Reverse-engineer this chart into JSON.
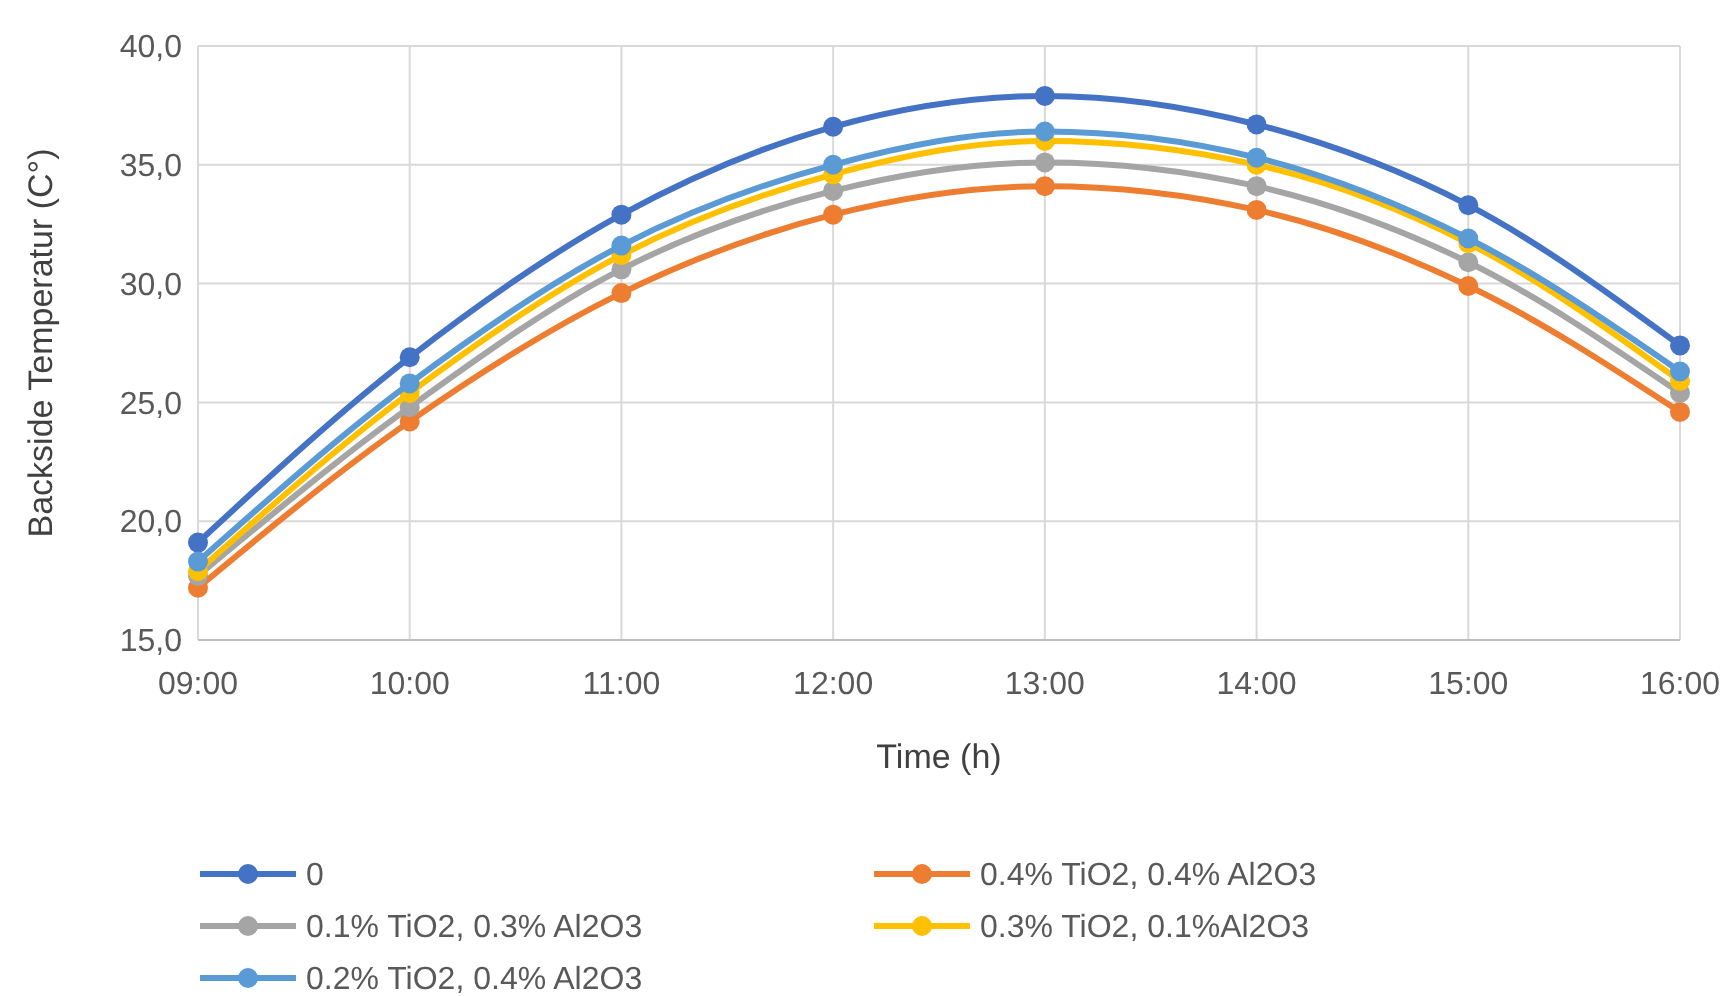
{
  "chart_data": {
    "type": "line",
    "xlabel": "Time (h)",
    "ylabel": "Backside Temperatur (C°)",
    "categories": [
      "09:00",
      "10:00",
      "11:00",
      "12:00",
      "13:00",
      "14:00",
      "15:00",
      "16:00"
    ],
    "series": [
      {
        "name": "0",
        "color": "#4472c4",
        "values": [
          19.1,
          26.9,
          32.9,
          36.6,
          37.9,
          36.7,
          33.3,
          27.4
        ]
      },
      {
        "name": "0.4% TiO2, 0.4% Al2O3",
        "color": "#ed7d31",
        "values": [
          17.2,
          24.2,
          29.6,
          32.9,
          34.1,
          33.1,
          29.9,
          24.6
        ]
      },
      {
        "name": "0.1% TiO2, 0.3% Al2O3",
        "color": "#a5a5a5",
        "values": [
          17.7,
          24.8,
          30.6,
          33.9,
          35.1,
          34.1,
          30.9,
          25.4
        ]
      },
      {
        "name": "0.3% TiO2, 0.1%Al2O3",
        "color": "#ffc000",
        "values": [
          17.9,
          25.4,
          31.2,
          34.6,
          36.0,
          35.0,
          31.7,
          25.9
        ]
      },
      {
        "name": "0.2% TiO2, 0.4% Al2O3",
        "color": "#5b9bd5",
        "values": [
          18.3,
          25.8,
          31.6,
          35.0,
          36.4,
          35.3,
          31.9,
          26.3
        ]
      }
    ],
    "ylim": [
      15,
      40
    ],
    "yticks": [
      {
        "value": 15,
        "label": "15,0"
      },
      {
        "value": 20,
        "label": "20,0"
      },
      {
        "value": 25,
        "label": "25,0"
      },
      {
        "value": 30,
        "label": "30,0"
      },
      {
        "value": 35,
        "label": "35,0"
      },
      {
        "value": 40,
        "label": "40,0"
      }
    ],
    "grid": true,
    "legend": "bottom",
    "marker": "circle",
    "line_style": "solid"
  }
}
